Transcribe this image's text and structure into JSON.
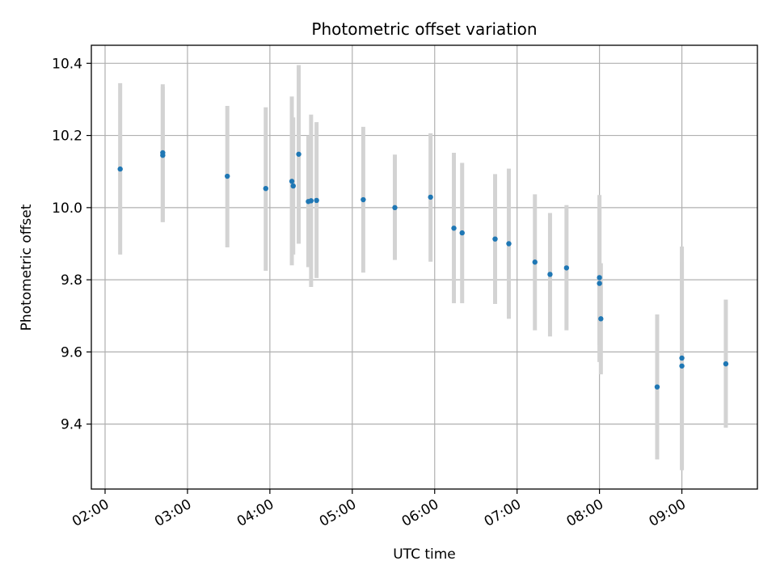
{
  "chart_data": {
    "type": "scatter",
    "title": "Photometric offset variation",
    "xlabel": "UTC time",
    "ylabel": "Photometric offset",
    "x_axis_type": "time",
    "xlim": [
      "01:50",
      "09:55"
    ],
    "ylim": [
      9.22,
      10.45
    ],
    "x_ticks": [
      "02:00",
      "03:00",
      "04:00",
      "05:00",
      "06:00",
      "07:00",
      "08:00",
      "09:00"
    ],
    "y_ticks": [
      "9.4",
      "9.6",
      "9.8",
      "10.0",
      "10.2",
      "10.4"
    ],
    "grid": true,
    "point_color": "#1f77b4",
    "errorbar_color": "#d3d3d3",
    "points": [
      {
        "x": "02:11",
        "y": 10.107,
        "err_low": 9.87,
        "err_high": 10.345
      },
      {
        "x": "02:42",
        "y": 10.152,
        "err_low": 9.96,
        "err_high": 10.342
      },
      {
        "x": "02:42",
        "y": 10.145,
        "err_low": 9.96,
        "err_high": 10.335
      },
      {
        "x": "03:29",
        "y": 10.087,
        "err_low": 9.89,
        "err_high": 10.282
      },
      {
        "x": "03:57",
        "y": 10.053,
        "err_low": 9.825,
        "err_high": 10.278
      },
      {
        "x": "04:16",
        "y": 10.073,
        "err_low": 9.84,
        "err_high": 10.308
      },
      {
        "x": "04:17",
        "y": 10.06,
        "err_low": 9.87,
        "err_high": 10.25
      },
      {
        "x": "04:21",
        "y": 10.148,
        "err_low": 9.9,
        "err_high": 10.395
      },
      {
        "x": "04:28",
        "y": 10.017,
        "err_low": 9.835,
        "err_high": 10.2
      },
      {
        "x": "04:30",
        "y": 10.019,
        "err_low": 9.78,
        "err_high": 10.258
      },
      {
        "x": "04:34",
        "y": 10.02,
        "err_low": 9.805,
        "err_high": 10.237
      },
      {
        "x": "05:08",
        "y": 10.022,
        "err_low": 9.82,
        "err_high": 10.224
      },
      {
        "x": "05:31",
        "y": 10.0,
        "err_low": 9.855,
        "err_high": 10.147
      },
      {
        "x": "05:57",
        "y": 10.029,
        "err_low": 9.85,
        "err_high": 10.206
      },
      {
        "x": "06:14",
        "y": 9.943,
        "err_low": 9.735,
        "err_high": 10.152
      },
      {
        "x": "06:20",
        "y": 9.93,
        "err_low": 9.735,
        "err_high": 10.124
      },
      {
        "x": "06:44",
        "y": 9.913,
        "err_low": 9.733,
        "err_high": 10.093
      },
      {
        "x": "06:54",
        "y": 9.9,
        "err_low": 9.692,
        "err_high": 10.108
      },
      {
        "x": "07:13",
        "y": 9.849,
        "err_low": 9.66,
        "err_high": 10.037
      },
      {
        "x": "07:24",
        "y": 9.815,
        "err_low": 9.643,
        "err_high": 9.985
      },
      {
        "x": "07:36",
        "y": 9.833,
        "err_low": 9.66,
        "err_high": 10.007
      },
      {
        "x": "08:00",
        "y": 9.806,
        "err_low": 9.62,
        "err_high": 10.035
      },
      {
        "x": "08:00",
        "y": 9.79,
        "err_low": 9.572,
        "err_high": 10.0
      },
      {
        "x": "08:01",
        "y": 9.692,
        "err_low": 9.538,
        "err_high": 9.846
      },
      {
        "x": "08:42",
        "y": 9.503,
        "err_low": 9.302,
        "err_high": 9.704
      },
      {
        "x": "09:00",
        "y": 9.583,
        "err_low": 9.3,
        "err_high": 9.892
      },
      {
        "x": "09:00",
        "y": 9.561,
        "err_low": 9.272,
        "err_high": 9.85
      },
      {
        "x": "09:32",
        "y": 9.567,
        "err_low": 9.39,
        "err_high": 9.745
      }
    ]
  }
}
